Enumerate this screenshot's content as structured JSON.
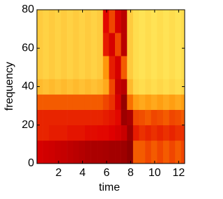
{
  "chart_data": {
    "type": "heatmap",
    "xlabel": "time",
    "ylabel": "frequency",
    "x_edges": [
      0.2,
      0.7,
      1.2,
      1.7,
      2.2,
      2.7,
      3.2,
      3.7,
      4.2,
      4.7,
      5.2,
      5.7,
      6.2,
      6.7,
      7.2,
      7.7,
      8.2,
      8.7,
      9.2,
      9.7,
      10.2,
      10.7,
      11.2,
      11.7,
      12.2,
      12.5
    ],
    "y_edges": [
      0,
      12,
      20,
      28,
      36,
      44,
      56,
      68,
      80
    ],
    "z": [
      [
        0.3,
        0.28,
        0.27,
        0.25,
        0.24,
        0.22,
        0.2,
        0.18,
        0.16,
        0.15,
        0.15,
        0.14,
        0.12,
        0.12,
        0.1,
        0.05,
        0.55,
        0.55,
        0.5,
        0.55,
        0.5,
        0.55,
        0.5,
        0.55,
        0.5
      ],
      [
        0.42,
        0.42,
        0.4,
        0.4,
        0.4,
        0.38,
        0.38,
        0.38,
        0.36,
        0.36,
        0.35,
        0.35,
        0.33,
        0.3,
        0.25,
        0.1,
        0.4,
        0.45,
        0.42,
        0.45,
        0.42,
        0.45,
        0.42,
        0.45,
        0.45
      ],
      [
        0.42,
        0.42,
        0.42,
        0.42,
        0.42,
        0.42,
        0.42,
        0.42,
        0.42,
        0.42,
        0.42,
        0.4,
        0.38,
        0.35,
        0.1,
        0.15,
        0.5,
        0.52,
        0.55,
        0.5,
        0.52,
        0.55,
        0.5,
        0.52,
        0.55
      ],
      [
        0.55,
        0.55,
        0.55,
        0.55,
        0.55,
        0.55,
        0.55,
        0.55,
        0.55,
        0.55,
        0.55,
        0.5,
        0.45,
        0.3,
        0.08,
        0.6,
        0.72,
        0.75,
        0.72,
        0.75,
        0.72,
        0.75,
        0.72,
        0.75,
        0.72
      ],
      [
        0.8,
        0.82,
        0.8,
        0.82,
        0.8,
        0.82,
        0.8,
        0.82,
        0.8,
        0.82,
        0.8,
        0.75,
        0.5,
        0.25,
        0.2,
        0.8,
        0.88,
        0.9,
        0.88,
        0.9,
        0.88,
        0.9,
        0.88,
        0.9,
        0.88
      ],
      [
        0.85,
        0.87,
        0.85,
        0.87,
        0.85,
        0.87,
        0.85,
        0.87,
        0.85,
        0.87,
        0.85,
        0.7,
        0.4,
        0.3,
        0.55,
        0.85,
        0.9,
        0.92,
        0.9,
        0.92,
        0.9,
        0.92,
        0.9,
        0.92,
        0.9
      ],
      [
        0.85,
        0.87,
        0.85,
        0.87,
        0.85,
        0.87,
        0.85,
        0.87,
        0.85,
        0.87,
        0.85,
        0.4,
        0.3,
        0.5,
        0.2,
        0.85,
        0.9,
        0.92,
        0.9,
        0.92,
        0.9,
        0.92,
        0.9,
        0.92,
        0.9
      ],
      [
        0.85,
        0.87,
        0.85,
        0.87,
        0.85,
        0.87,
        0.85,
        0.87,
        0.85,
        0.87,
        0.85,
        0.35,
        0.5,
        0.3,
        0.2,
        0.85,
        0.9,
        0.92,
        0.9,
        0.92,
        0.9,
        0.92,
        0.9,
        0.92,
        0.9
      ]
    ],
    "colormap": [
      "#800000",
      "#e00000",
      "#ff8c00",
      "#ffff70"
    ],
    "zlim": [
      0,
      1
    ],
    "xlim": [
      0.2,
      12.5
    ],
    "ylim": [
      0,
      80
    ],
    "xticks": [
      2,
      4,
      6,
      8,
      10,
      12
    ],
    "yticks": [
      0,
      20,
      40,
      60,
      80
    ]
  }
}
